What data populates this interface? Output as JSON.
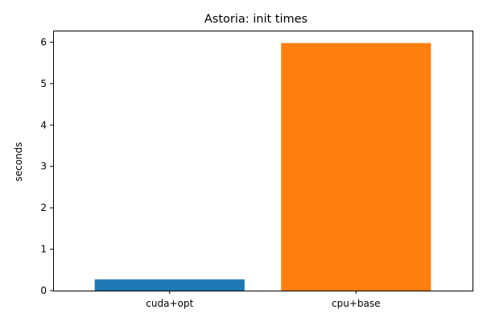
{
  "chart_data": {
    "type": "bar",
    "title": "Astoria: init times",
    "xlabel": "",
    "ylabel": "seconds",
    "categories": [
      "cuda+opt",
      "cpu+base"
    ],
    "values": [
      0.27,
      5.98
    ],
    "colors": [
      "#1f77b4",
      "#ff7f0e"
    ],
    "ylim": [
      0,
      6.28
    ],
    "yticks": [
      0,
      1,
      2,
      3,
      4,
      5,
      6
    ],
    "ytick_labels": [
      "0",
      "1",
      "2",
      "3",
      "4",
      "5",
      "6"
    ],
    "grid": false,
    "legend": "none"
  }
}
